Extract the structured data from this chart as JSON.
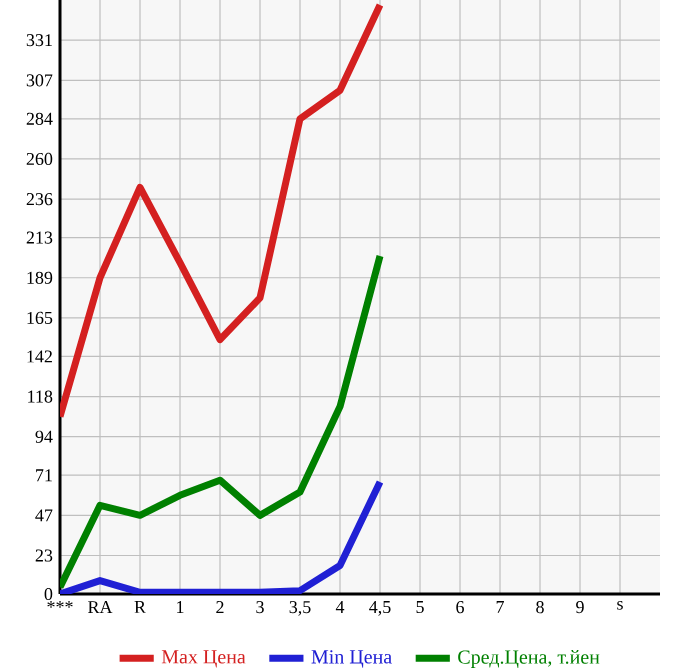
{
  "chart_data": {
    "type": "line",
    "categories": [
      "***",
      "RA",
      "R",
      "1",
      "2",
      "3",
      "3,5",
      "4",
      "4,5",
      "5",
      "6",
      "7",
      "8",
      "9",
      "s"
    ],
    "series": [
      {
        "name": "Max Цена",
        "color": "#d42020",
        "values": [
          106,
          189,
          243,
          198,
          152,
          177,
          284,
          301,
          352,
          null,
          null,
          null,
          null,
          null,
          null
        ]
      },
      {
        "name": "Min Цена",
        "color": "#2020d4",
        "values": [
          0,
          8,
          1,
          1,
          1,
          1,
          2,
          17,
          67,
          null,
          null,
          null,
          null,
          null,
          null
        ]
      },
      {
        "name": "Сред.Цена, т.йен",
        "color": "#008000",
        "values": [
          4,
          53,
          47,
          59,
          68,
          47,
          61,
          112,
          202,
          null,
          null,
          null,
          null,
          null,
          null
        ]
      }
    ],
    "ylim": [
      0,
      355
    ],
    "yticks": [
      0,
      23,
      47,
      71,
      94,
      118,
      142,
      165,
      189,
      213,
      236,
      260,
      284,
      307,
      331
    ],
    "grid": true,
    "legend": "bottom",
    "marker": "none",
    "line_style": "solid"
  }
}
